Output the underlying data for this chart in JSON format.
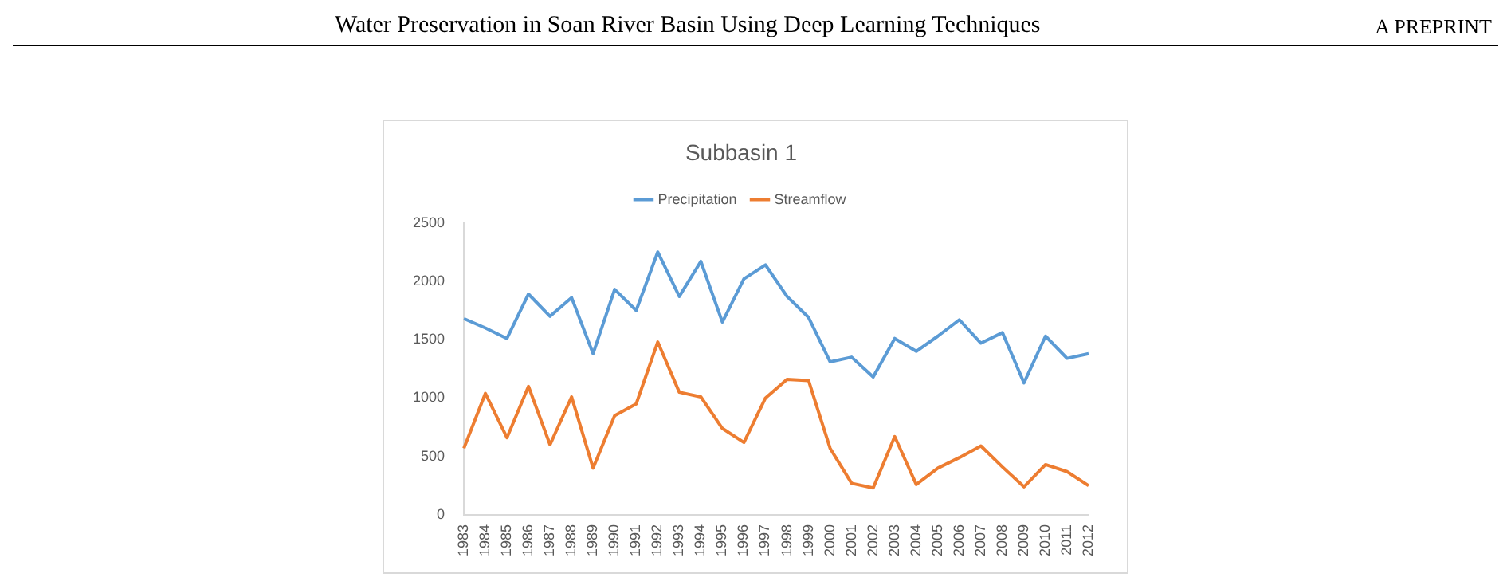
{
  "chart_data": {
    "type": "line",
    "title": "Subbasin 1",
    "annotations": [
      "Water Preservation in Soan River Basin Using Deep Learning Techniques",
      "A PREPRINT"
    ],
    "categories": [
      "1983",
      "1984",
      "1985",
      "1986",
      "1987",
      "1988",
      "1989",
      "1990",
      "1991",
      "1992",
      "1993",
      "1994",
      "1995",
      "1996",
      "1997",
      "1998",
      "1999",
      "2000",
      "2001",
      "2002",
      "2003",
      "2004",
      "2005",
      "2006",
      "2007",
      "2008",
      "2009",
      "2010",
      "2011",
      "2012"
    ],
    "series": [
      {
        "name": "Precipitation",
        "color": "#5b9bd5",
        "values": [
          1680,
          1600,
          1510,
          1890,
          1700,
          1860,
          1380,
          1930,
          1750,
          2250,
          1870,
          2170,
          1650,
          2020,
          2140,
          1870,
          1690,
          1310,
          1350,
          1180,
          1510,
          1400,
          1530,
          1670,
          1470,
          1560,
          1130,
          1530,
          1340,
          1380
        ]
      },
      {
        "name": "Streamflow",
        "color": "#ed7d31",
        "values": [
          570,
          1040,
          660,
          1100,
          600,
          1010,
          400,
          850,
          950,
          1480,
          1050,
          1010,
          740,
          620,
          1000,
          1160,
          1150,
          570,
          270,
          230,
          670,
          260,
          400,
          490,
          590,
          410,
          240,
          430,
          370,
          250
        ]
      }
    ],
    "ylim": [
      0,
      2500
    ],
    "yticks": [
      0,
      500,
      1000,
      1500,
      2000,
      2500
    ],
    "grid": false,
    "legend": "top",
    "marker": "none",
    "line_style": "solid"
  }
}
